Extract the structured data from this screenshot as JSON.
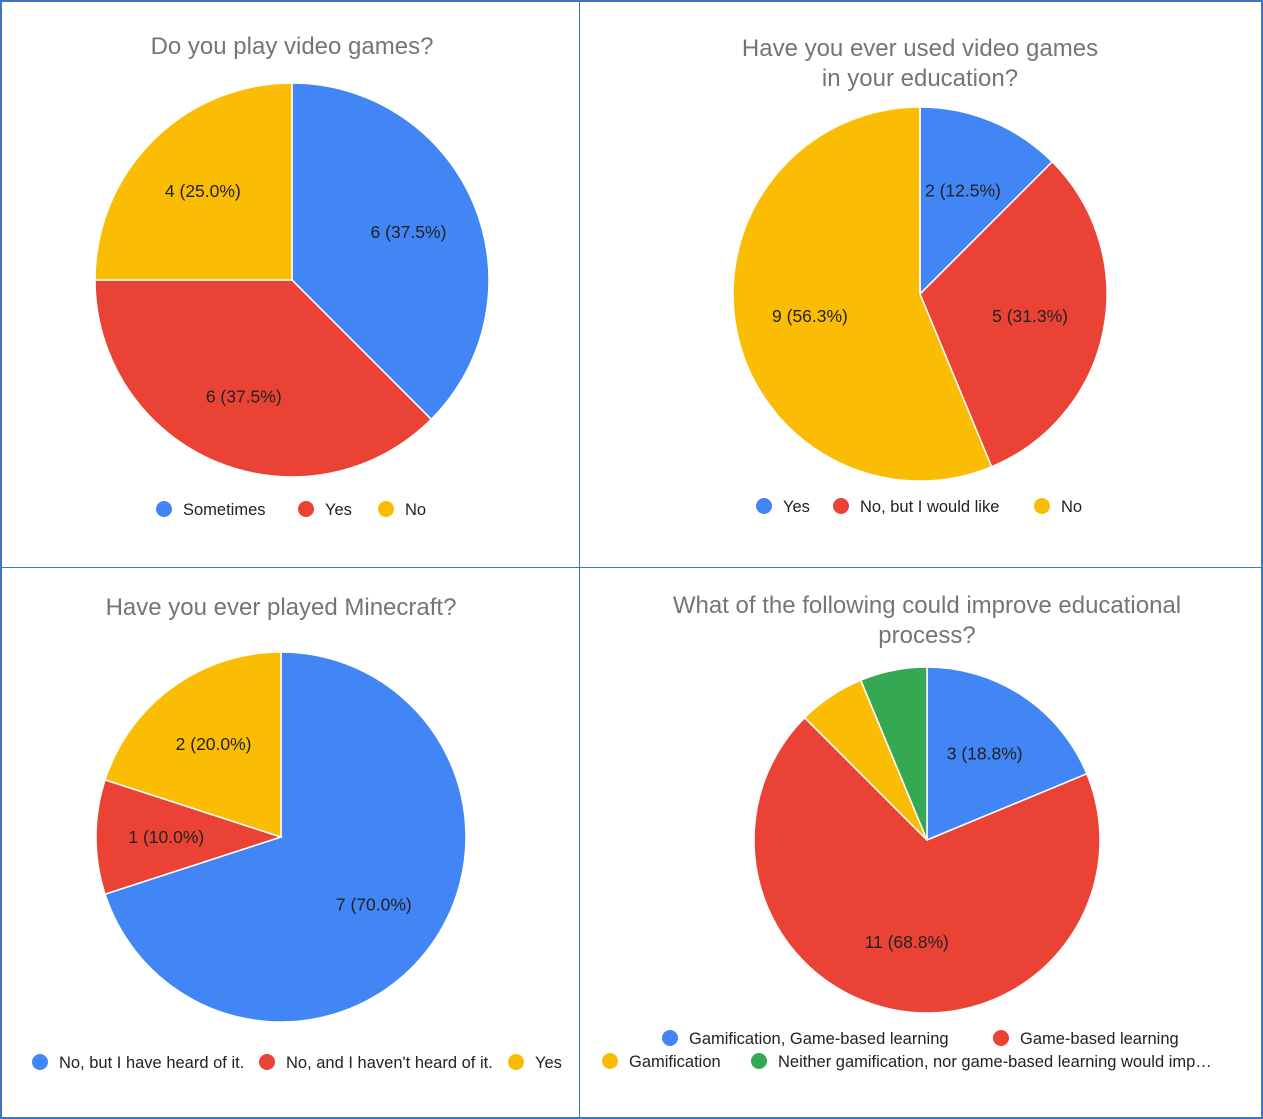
{
  "colors": {
    "blue": "#4285f4",
    "red": "#ea4335",
    "yellow": "#fbbc04",
    "green": "#34a853",
    "border": "#4472c4",
    "title": "#757575",
    "text": "#222222"
  },
  "chart_data": [
    {
      "type": "pie",
      "title": [
        "Do you play video games?"
      ],
      "legend_position": "bottom",
      "slices": [
        {
          "name": "Sometimes",
          "value": 6,
          "label": "6 (37.5%)",
          "color": "#4285f4"
        },
        {
          "name": "Yes",
          "value": 6,
          "label": "6 (37.5%)",
          "color": "#ea4335"
        },
        {
          "name": "No",
          "value": 4,
          "label": "4 (25.0%)",
          "color": "#fbbc04"
        }
      ]
    },
    {
      "type": "pie",
      "title": [
        "Have you ever used video games",
        "in your education?"
      ],
      "legend_position": "bottom",
      "slices": [
        {
          "name": "Yes",
          "value": 2,
          "label": "2 (12.5%)",
          "color": "#4285f4"
        },
        {
          "name": "No, but I would like",
          "value": 5,
          "label": "5 (31.3%)",
          "color": "#ea4335"
        },
        {
          "name": "No",
          "value": 9,
          "label": "9 (56.3%)",
          "color": "#fbbc04"
        }
      ]
    },
    {
      "type": "pie",
      "title": [
        "Have you ever played Minecraft?"
      ],
      "legend_position": "bottom",
      "slices": [
        {
          "name": "No, but I have heard of it.",
          "value": 7,
          "label": "7 (70.0%)",
          "color": "#4285f4"
        },
        {
          "name": "No, and I haven't heard of it.",
          "value": 1,
          "label": "1 (10.0%)",
          "color": "#ea4335"
        },
        {
          "name": "Yes",
          "value": 2,
          "label": "2 (20.0%)",
          "color": "#fbbc04"
        }
      ]
    },
    {
      "type": "pie",
      "title": [
        "What of the following could improve educational",
        "process?"
      ],
      "legend_position": "bottom",
      "slices": [
        {
          "name": "Gamification, Game-based learning",
          "value": 3,
          "label": "3 (18.8%)",
          "color": "#4285f4"
        },
        {
          "name": "Game-based learning",
          "value": 11,
          "label": "11 (68.8%)",
          "color": "#ea4335"
        },
        {
          "name": "Gamification",
          "value": 1,
          "label": "",
          "color": "#fbbc04"
        },
        {
          "name": "Neither gamification, nor game-based learning would imp…",
          "value": 1,
          "label": "",
          "color": "#34a853"
        }
      ]
    }
  ]
}
